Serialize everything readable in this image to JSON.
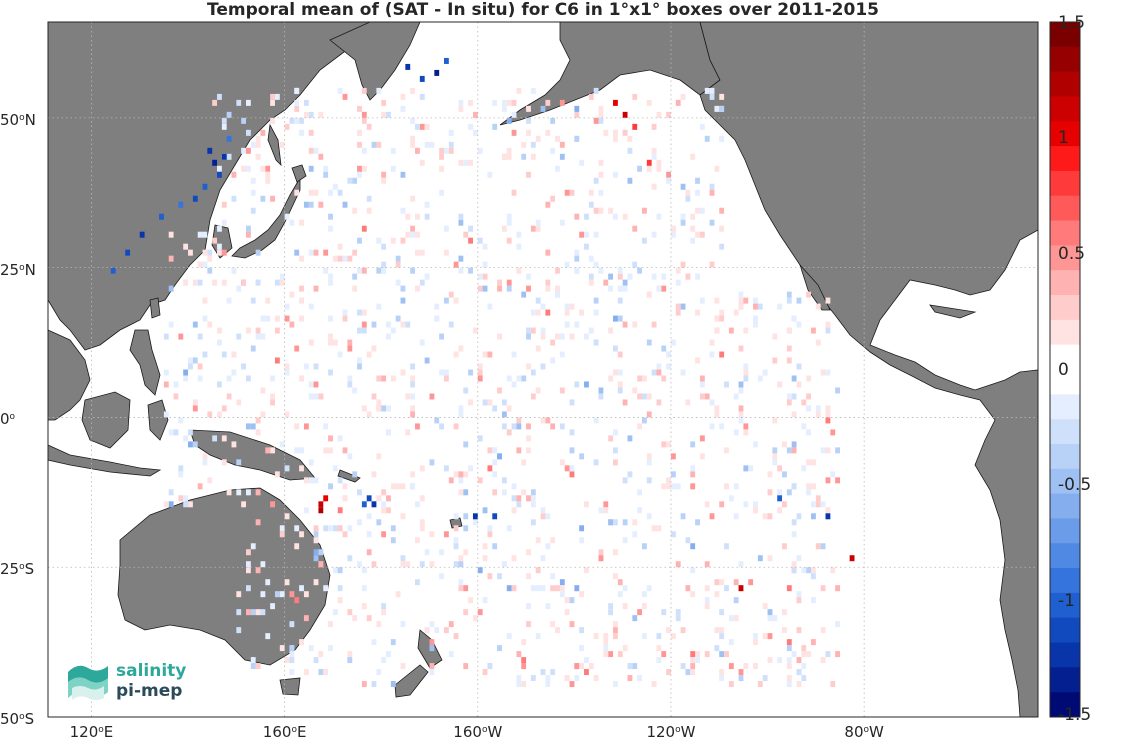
{
  "title": "Temporal mean of (SAT - In situ) for C6 in 1°x1° boxes over 2011-2015",
  "colorbar": {
    "min": -1.5,
    "max": 1.5,
    "ticks": [
      "1.5",
      "1",
      "0.5",
      "0",
      "-0.5",
      "-1",
      "-1.5"
    ],
    "tick_values": [
      1.5,
      1,
      0.5,
      0,
      -0.5,
      -1,
      -1.5
    ],
    "colors_high": [
      "#7a0000",
      "#960000",
      "#b00000",
      "#cc0000",
      "#e60000",
      "#ff1a1a",
      "#ff3a3a",
      "#ff5a5a",
      "#ff7a7a",
      "#ff9696",
      "#ffb2b2",
      "#ffcccc",
      "#ffe2e2"
    ],
    "colors_low": [
      "#e4eeff",
      "#cfe0fb",
      "#b8d1f7",
      "#9ec0f3",
      "#84aeee",
      "#6a9ce9",
      "#4f89e3",
      "#3474dc",
      "#1f5fd0",
      "#1149bf",
      "#0835aa",
      "#041f90",
      "#000a75"
    ]
  },
  "axes": {
    "lat_ticks": [
      {
        "deg": "50",
        "hemi": "N",
        "lat": 50
      },
      {
        "deg": "25",
        "hemi": "N",
        "lat": 25
      },
      {
        "deg": "0",
        "hemi": "",
        "lat": 0
      },
      {
        "deg": "25",
        "hemi": "S",
        "lat": -25
      },
      {
        "deg": "50",
        "hemi": "S",
        "lat": -50
      }
    ],
    "lon_ticks": [
      {
        "deg": "120",
        "hemi": "E",
        "lon": 120
      },
      {
        "deg": "160",
        "hemi": "E",
        "lon": 160
      },
      {
        "deg": "160",
        "hemi": "W",
        "lon": 200
      },
      {
        "deg": "120",
        "hemi": "W",
        "lon": 240
      },
      {
        "deg": "80",
        "hemi": "W",
        "lon": 280
      }
    ],
    "lon_range": [
      111,
      316
    ],
    "lat_range": [
      -50,
      66
    ]
  },
  "logo": {
    "line1": "salinity",
    "line2": "pi-mep"
  },
  "colors": {
    "land": "#7f7f7f",
    "ocean": "#ffffff",
    "grid": "#b0b0b0",
    "logo_teal": "#2ea89a",
    "logo_dark": "#2b4a5a"
  }
}
